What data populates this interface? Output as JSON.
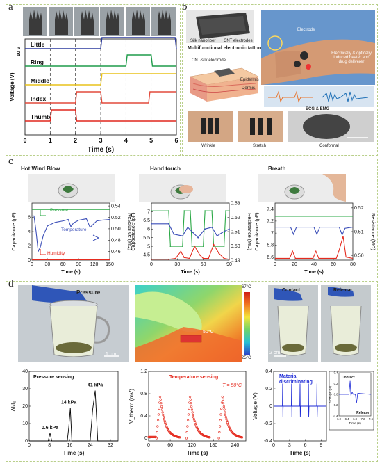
{
  "panel_labels": {
    "a": "a",
    "b": "b",
    "c": "c",
    "d": "d"
  },
  "panel_b": {
    "cnt_label": "CNT electrodes",
    "silk_label": "Silk nanofiber",
    "tattoo_title": "Multifunctional electronic tattoo",
    "cnt_silk_label": "CNT/silk electrode",
    "epidermis": "Epidermis",
    "dermis": "Dermis",
    "electrode": "Electrode",
    "heater_text": "Electrically & optically induced heater and drug deliverer",
    "ecg_label": "ECG & EMG",
    "wrinkle": "Wrinkle",
    "stretch": "Stretch",
    "conformal": "Conformal"
  },
  "panel_c": {
    "titles": [
      "Hot Wind Blow",
      "Hand touch",
      "Breath"
    ],
    "left_ylabel": "Capacitance (pF)",
    "right_ylabel": "Resistance (MΩ)",
    "xlabel": "Time (s)",
    "legend": {
      "pressure": "Pressure",
      "temperature": "Temperature",
      "humidity": "Humidity"
    }
  },
  "panel_d": {
    "pressure_title": "Pressure",
    "scale_1cm": "1 cm",
    "thermal_max": "67°C",
    "thermal_min": "25°C",
    "thermal_spot": "50°C",
    "contact": "Contact",
    "release": "Release",
    "scale_2cm": "2 cm"
  },
  "chart_data": [
    {
      "id": "a-finger-voltage",
      "type": "line",
      "xlabel": "Time (s)",
      "ylabel": "Voltage (V)",
      "scale_label": "10 V",
      "xlim": [
        0,
        6
      ],
      "xticks": [
        0,
        1,
        2,
        3,
        4,
        5,
        6
      ],
      "series": [
        {
          "name": "Little",
          "color": "#2b3a9e",
          "x": [
            0,
            3,
            3.05,
            5.95,
            6
          ],
          "y": [
            0,
            0,
            1,
            1,
            0
          ]
        },
        {
          "name": "Ring",
          "color": "#1f9c4a",
          "x": [
            0,
            4,
            4.05,
            5,
            5.05,
            6
          ],
          "y": [
            0,
            0,
            1,
            1,
            0,
            0
          ]
        },
        {
          "name": "Middle",
          "color": "#e8c21a",
          "x": [
            0,
            3,
            3.05,
            6
          ],
          "y": [
            0,
            0,
            1,
            1
          ]
        },
        {
          "name": "Index",
          "color": "#e24a3b",
          "x": [
            0,
            2,
            2.05,
            3,
            3.05,
            4.9,
            4.95,
            6
          ],
          "y": [
            0,
            0,
            1,
            1,
            0,
            0,
            1,
            1
          ]
        },
        {
          "name": "Thumb",
          "color": "#e0261d",
          "x": [
            0,
            1,
            1.05,
            2,
            2.05,
            6
          ],
          "y": [
            0,
            0,
            1,
            1,
            0,
            0
          ]
        }
      ]
    },
    {
      "id": "c-hot-wind",
      "type": "line",
      "title": "Hot Wind Blow",
      "xlabel": "Time (s)",
      "ylabel": "Capacitance (pF)",
      "y2label": "Resistance (MΩ)",
      "xlim": [
        0,
        150
      ],
      "xticks": [
        0,
        30,
        60,
        90,
        120,
        150
      ],
      "ylim": [
        0,
        8
      ],
      "yticks": [
        0,
        2,
        4,
        6
      ],
      "y2lim": [
        0.445,
        0.545
      ],
      "y2ticks": [
        0.46,
        0.48,
        0.5,
        0.52,
        0.54
      ],
      "series": [
        {
          "name": "Pressure",
          "axis": "left",
          "color": "#2aa845",
          "x": [
            0,
            150
          ],
          "y": [
            7.1,
            7.1
          ]
        },
        {
          "name": "Temperature",
          "axis": "left",
          "color": "#3c4fb8",
          "x": [
            0,
            4,
            8,
            12,
            16,
            22,
            30,
            45,
            60,
            70,
            75,
            80,
            90,
            105,
            112,
            118,
            125,
            135,
            150
          ],
          "y": [
            6.2,
            6.2,
            4,
            1.2,
            1.8,
            3.5,
            4.8,
            5.3,
            5.5,
            5.7,
            4.7,
            5.2,
            5.6,
            5.8,
            4.6,
            5,
            5.5,
            5.6,
            5.7
          ]
        },
        {
          "name": "Humidity",
          "axis": "left",
          "color": "#e52b1f",
          "x": [
            0,
            150
          ],
          "y": [
            0.05,
            0.05
          ]
        }
      ]
    },
    {
      "id": "c-hand-touch",
      "type": "line",
      "title": "Hand touch",
      "xlabel": "Time (s)",
      "ylabel": "Capacitance (pF)",
      "y2label": "Resistance (MΩ)",
      "xlim": [
        0,
        90
      ],
      "xticks": [
        0,
        30,
        60,
        90
      ],
      "ylim": [
        4.2,
        7.5
      ],
      "yticks": [
        4.5,
        5,
        5.5,
        6,
        6.5,
        7
      ],
      "y2lim": [
        0.49,
        0.53
      ],
      "y2ticks": [
        0.49,
        0.5,
        0.51,
        0.52,
        0.53
      ],
      "series": [
        {
          "name": "Pressure",
          "axis": "left",
          "color": "#2aa845",
          "x": [
            0,
            20,
            22,
            36,
            38,
            45,
            47,
            60,
            62,
            70,
            72,
            84,
            86,
            90
          ],
          "y": [
            7.05,
            7.05,
            5.0,
            5.0,
            7.05,
            7.05,
            5.0,
            5.0,
            7.05,
            7.05,
            5.0,
            5.0,
            7.05,
            7.05
          ]
        },
        {
          "name": "Temperature",
          "axis": "left",
          "color": "#3c4fb8",
          "x": [
            0,
            20,
            26,
            36,
            42,
            48,
            54,
            62,
            70,
            76,
            82,
            90
          ],
          "y": [
            6.3,
            6.3,
            5.7,
            5.6,
            6.1,
            5.8,
            5.5,
            6.0,
            6.1,
            5.6,
            5.8,
            6.0
          ]
        },
        {
          "name": "Humidity",
          "axis": "left",
          "color": "#e52b1f",
          "x": [
            0,
            20,
            28,
            34,
            38,
            44,
            50,
            56,
            60,
            66,
            72,
            78,
            84,
            90
          ],
          "y": [
            4.25,
            4.25,
            4.3,
            4.7,
            4.35,
            4.3,
            5.0,
            4.5,
            4.3,
            4.3,
            5.1,
            4.6,
            4.3,
            4.25
          ]
        }
      ]
    },
    {
      "id": "c-breath",
      "type": "line",
      "title": "Breath",
      "xlabel": "Time (s)",
      "ylabel": "Capacitance (pF)",
      "y2label": "Resistance (MΩ)",
      "xlim": [
        0,
        80
      ],
      "xticks": [
        0,
        20,
        40,
        60,
        80
      ],
      "ylim": [
        6.55,
        7.5
      ],
      "yticks": [
        6.6,
        6.8,
        7.0,
        7.2,
        7.4
      ],
      "y2lim": [
        0.498,
        0.522
      ],
      "y2ticks": [
        0.5,
        0.51,
        0.52
      ],
      "series": [
        {
          "name": "Pressure",
          "axis": "left",
          "color": "#2aa845",
          "x": [
            0,
            80
          ],
          "y": [
            7.28,
            7.28
          ]
        },
        {
          "name": "Temperature",
          "axis": "left",
          "color": "#3c4fb8",
          "x": [
            0,
            16,
            19,
            22,
            40,
            43,
            46,
            66,
            69,
            72,
            80
          ],
          "y": [
            7.1,
            7.1,
            6.98,
            7.1,
            7.1,
            6.98,
            7.1,
            7.1,
            6.97,
            7.08,
            7.1
          ]
        },
        {
          "name": "Humidity",
          "axis": "left",
          "color": "#e52b1f",
          "x": [
            0,
            15,
            18,
            21,
            39,
            42,
            45,
            63,
            66,
            70,
            73,
            80
          ],
          "y": [
            6.58,
            6.58,
            6.7,
            6.58,
            6.58,
            6.7,
            6.58,
            6.58,
            6.72,
            6.95,
            6.6,
            6.58
          ]
        }
      ]
    },
    {
      "id": "d-pressure-sensing",
      "type": "line",
      "title": "Pressure sensing",
      "xlabel": "Time (s)",
      "ylabel": "ΔI/I₀",
      "xlim": [
        0,
        35
      ],
      "xticks": [
        0,
        8,
        16,
        24,
        32
      ],
      "ylim": [
        0,
        40
      ],
      "yticks": [
        0,
        10,
        20,
        30,
        40
      ],
      "annotations": [
        "0.6 kPa",
        "14 kPa",
        "41 kPa"
      ],
      "series": [
        {
          "name": "Pressure sensing",
          "color": "#000000",
          "x": [
            0,
            7.5,
            8.2,
            8.9,
            15,
            15.6,
            16.2,
            16.8,
            24,
            25,
            26,
            27,
            35
          ],
          "y": [
            0,
            0,
            4.5,
            0,
            0,
            8,
            19,
            0,
            0,
            18,
            29,
            0,
            0
          ]
        }
      ]
    },
    {
      "id": "d-temperature-sensing",
      "type": "scatter",
      "title": "Temperature sensing",
      "annotation": "T = 50°C",
      "xlabel": "Time (s)",
      "ylabel": "V_therm (mV)",
      "xlim": [
        0,
        270
      ],
      "xticks": [
        0,
        60,
        120,
        180,
        240
      ],
      "ylim": [
        -0.05,
        1.2
      ],
      "yticks": [
        0.0,
        0.4,
        0.8,
        1.2
      ],
      "series": [
        {
          "name": "Temperature sensing",
          "color": "#e52b1f",
          "pulses_start": [
            22,
            105,
            195
          ],
          "peak": 0.76,
          "rise_s": 10,
          "decay_s": 55
        }
      ]
    },
    {
      "id": "d-material-discriminating",
      "type": "line",
      "title": "Material discriminating",
      "xlabel": "Time (s)",
      "ylabel": "Voltage (V)",
      "xlim": [
        0,
        10
      ],
      "xticks": [
        0,
        3,
        6,
        9
      ],
      "ylim": [
        -0.4,
        0.4
      ],
      "yticks": [
        -0.4,
        -0.2,
        0.0,
        0.2,
        0.4
      ],
      "spike_times": [
        1.7,
        3.4,
        5.0,
        6.6,
        8.2
      ],
      "spike_high": 0.26,
      "spike_low": -0.12,
      "series": [
        {
          "name": "Material discriminating",
          "color": "#1d2ad6"
        }
      ],
      "inset": {
        "xlabel": "Time (s)",
        "ylabel": "Voltage (V)",
        "xlim": [
          6.0,
          7.6
        ],
        "xticks": [
          6.0,
          6.4,
          6.8,
          7.2,
          7.6
        ],
        "ylim": [
          -0.4,
          0.4
        ],
        "yticks": [
          -0.4,
          -0.2,
          0.0,
          0.2,
          0.4
        ],
        "labels": {
          "top": "Contact",
          "bottom": "Release"
        },
        "x": [
          6.0,
          6.5,
          6.56,
          6.6,
          6.66,
          6.72,
          6.82,
          6.88,
          6.94,
          7.6
        ],
        "y": [
          0,
          0,
          0.25,
          -0.02,
          0.04,
          0,
          0,
          -0.16,
          0.02,
          0
        ]
      }
    }
  ]
}
